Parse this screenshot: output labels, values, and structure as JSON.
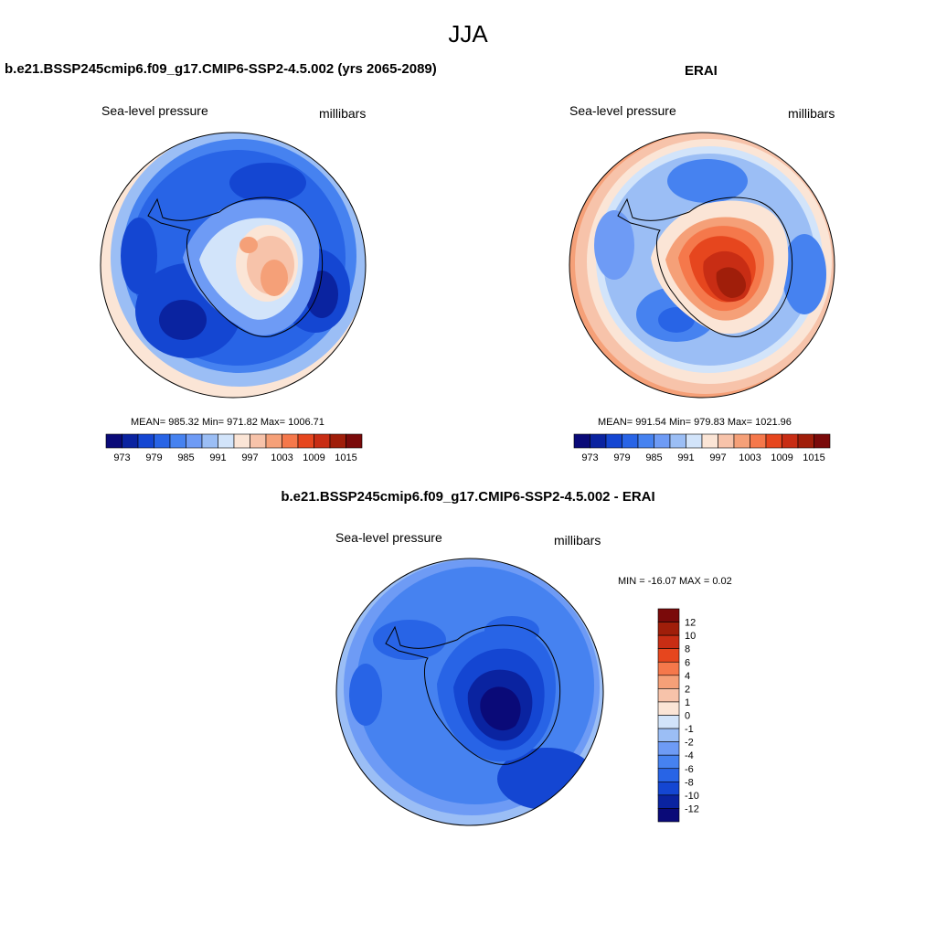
{
  "title": "JJA",
  "palette": [
    "#0a0a78",
    "#0a23a0",
    "#1446d2",
    "#2864e6",
    "#4682f0",
    "#6e9bf5",
    "#9bbef5",
    "#d2e4fa",
    "#fbe5d6",
    "#f7c3aa",
    "#f5a078",
    "#f5784b",
    "#e6461e",
    "#c82d14",
    "#a01e0a",
    "#7a0a0a"
  ],
  "panels": [
    {
      "title": "b.e21.BSSP245cmip6.f09_g17.CMIP6-SSP2-4.5.002 (yrs 2065-2089)",
      "left_label": "Sea-level pressure",
      "right_label": "millibars",
      "stats": "MEAN= 985.32  Min= 971.82  Max= 1006.71",
      "colorbar_ticks": [
        "973",
        "979",
        "985",
        "991",
        "997",
        "1003",
        "1009",
        "1015"
      ]
    },
    {
      "title": "ERAI",
      "left_label": "Sea-level pressure",
      "right_label": "millibars",
      "stats": "MEAN= 991.54  Min= 979.83  Max= 1021.96",
      "colorbar_ticks": [
        "973",
        "979",
        "985",
        "991",
        "997",
        "1003",
        "1009",
        "1015"
      ]
    },
    {
      "title": "b.e21.BSSP245cmip6.f09_g17.CMIP6-SSP2-4.5.002 - ERAI",
      "left_label": "Sea-level pressure",
      "right_label": "millibars",
      "stats": "MIN = -16.07 MAX =   0.02",
      "colorbar_ticks": [
        "12",
        "10",
        "8",
        "6",
        "4",
        "2",
        "1",
        "0",
        "-1",
        "-2",
        "-4",
        "-6",
        "-8",
        "-10",
        "-12"
      ]
    }
  ],
  "chart_data": [
    {
      "type": "heatmap",
      "title": "b.e21.BSSP245cmip6.f09_g17.CMIP6-SSP2-4.5.002 (yrs 2065-2089)",
      "variable": "Sea-level pressure",
      "units": "millibars",
      "projection": "south polar stereographic",
      "mean": 985.32,
      "min": 971.82,
      "max": 1006.71,
      "levels": [
        973,
        976,
        979,
        982,
        985,
        988,
        991,
        994,
        997,
        1000,
        1003,
        1006,
        1009,
        1012,
        1015
      ]
    },
    {
      "type": "heatmap",
      "title": "ERAI",
      "variable": "Sea-level pressure",
      "units": "millibars",
      "projection": "south polar stereographic",
      "mean": 991.54,
      "min": 979.83,
      "max": 1021.96,
      "levels": [
        973,
        976,
        979,
        982,
        985,
        988,
        991,
        994,
        997,
        1000,
        1003,
        1006,
        1009,
        1012,
        1015
      ]
    },
    {
      "type": "heatmap",
      "title": "b.e21.BSSP245cmip6.f09_g17.CMIP6-SSP2-4.5.002 - ERAI",
      "variable": "Sea-level pressure",
      "units": "millibars",
      "projection": "south polar stereographic",
      "min": -16.07,
      "max": 0.02,
      "levels": [
        -12,
        -10,
        -8,
        -6,
        -4,
        -2,
        -1,
        0,
        1,
        2,
        4,
        6,
        8,
        10,
        12
      ]
    }
  ]
}
